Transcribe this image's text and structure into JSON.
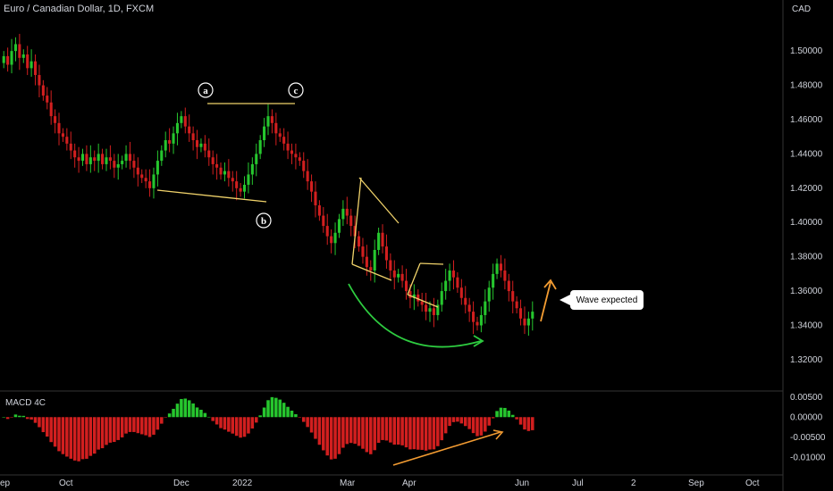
{
  "chart_data": [
    {
      "type": "candlestick",
      "title": "Euro / Canadian Dollar, 1D, FXCM",
      "currency": "CAD",
      "y_ticks": [
        "1.50000",
        "1.48000",
        "1.46000",
        "1.44000",
        "1.42000",
        "1.40000",
        "1.38000",
        "1.36000",
        "1.34000",
        "1.32000"
      ],
      "y_tick_values": [
        1.5,
        1.48,
        1.46,
        1.44,
        1.42,
        1.4,
        1.38,
        1.36,
        1.34,
        1.32
      ],
      "ylim": [
        1.3085,
        1.5235
      ],
      "x_ticks": [
        "ep",
        "Oct",
        "Dec",
        "2022",
        "Mar",
        "Apr",
        "Jun",
        "Jul",
        "2",
        "Sep",
        "Oct"
      ],
      "series_close": [
        1.497,
        1.492,
        1.5,
        1.504,
        1.496,
        1.498,
        1.49,
        1.494,
        1.486,
        1.48,
        1.474,
        1.47,
        1.462,
        1.458,
        1.452,
        1.45,
        1.446,
        1.442,
        1.438,
        1.436,
        1.44,
        1.434,
        1.438,
        1.436,
        1.44,
        1.434,
        1.438,
        1.436,
        1.432,
        1.434,
        1.436,
        1.44,
        1.436,
        1.432,
        1.428,
        1.426,
        1.424,
        1.42,
        1.428,
        1.436,
        1.442,
        1.448,
        1.446,
        1.452,
        1.458,
        1.462,
        1.456,
        1.452,
        1.448,
        1.444,
        1.446,
        1.442,
        1.438,
        1.434,
        1.432,
        1.428,
        1.43,
        1.426,
        1.424,
        1.42,
        1.418,
        1.422,
        1.428,
        1.434,
        1.44,
        1.448,
        1.456,
        1.462,
        1.458,
        1.452,
        1.45,
        1.446,
        1.442,
        1.44,
        1.438,
        1.436,
        1.43,
        1.424,
        1.418,
        1.41,
        1.404,
        1.398,
        1.392,
        1.388,
        1.394,
        1.402,
        1.408,
        1.404,
        1.398,
        1.392,
        1.386,
        1.38,
        1.374,
        1.372,
        1.384,
        1.394,
        1.386,
        1.378,
        1.372,
        1.368,
        1.37,
        1.366,
        1.36,
        1.356,
        1.358,
        1.354,
        1.352,
        1.348,
        1.35,
        1.346,
        1.352,
        1.36,
        1.366,
        1.372,
        1.368,
        1.362,
        1.356,
        1.352,
        1.348,
        1.342,
        1.34,
        1.346,
        1.354,
        1.362,
        1.37,
        1.376,
        1.372,
        1.366,
        1.36,
        1.354,
        1.35,
        1.344,
        1.34,
        1.344,
        1.348
      ],
      "annotations": {
        "wave_labels": [
          "a",
          "b",
          "c"
        ],
        "callout": "Wave expected"
      }
    },
    {
      "type": "histogram",
      "title": "MACD 4C",
      "y_ticks": [
        "0.00500",
        "0.00000",
        "-0.00500",
        "-0.01000"
      ],
      "y_tick_values": [
        0.005,
        0.0,
        -0.005,
        -0.01
      ],
      "ylim": [
        -0.0135,
        0.0065
      ]
    }
  ]
}
